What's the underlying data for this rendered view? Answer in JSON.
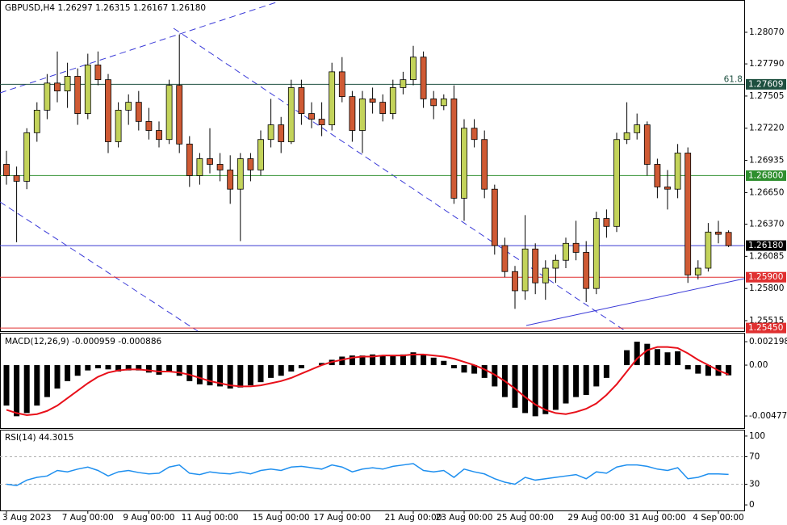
{
  "chart_data": [
    {
      "type": "candlestick",
      "title": "GBPUSD,H4  1.26297 1.26315 1.26167 1.26180",
      "categories": [
        "3 Aug 2023",
        null,
        null,
        null,
        null,
        null,
        null,
        null,
        "7 Aug 00:00",
        null,
        null,
        null,
        null,
        null,
        "9 Aug 00:00",
        null,
        null,
        null,
        null,
        null,
        "11 Aug 00:00",
        null,
        null,
        null,
        null,
        null,
        null,
        "15 Aug 00:00",
        null,
        null,
        null,
        null,
        null,
        "17 Aug 00:00",
        null,
        null,
        null,
        null,
        null,
        null,
        "21 Aug 00:00",
        null,
        null,
        null,
        null,
        "23 Aug 00:00",
        null,
        null,
        null,
        null,
        null,
        "25 Aug 00:00",
        null,
        null,
        null,
        null,
        null,
        null,
        "29 Aug 00:00",
        null,
        null,
        null,
        null,
        null,
        "31 Aug 00:00",
        null,
        null,
        null,
        null,
        null,
        "4 Sep 00:00",
        null
      ],
      "open": [
        1.269,
        1.268,
        1.2675,
        1.2718,
        1.2738,
        1.2762,
        1.2755,
        1.2768,
        1.2735,
        1.2778,
        1.2765,
        1.271,
        1.2738,
        1.2745,
        1.2728,
        1.272,
        1.2712,
        1.276,
        1.2708,
        1.268,
        1.2695,
        1.269,
        1.2685,
        1.2668,
        1.2695,
        1.2685,
        1.2712,
        1.2725,
        1.271,
        1.2758,
        1.2735,
        1.273,
        1.2725,
        1.2772,
        1.275,
        1.272,
        1.2748,
        1.2745,
        1.2735,
        1.2758,
        1.2765,
        1.2785,
        1.2748,
        1.2742,
        1.2748,
        1.266,
        1.2722,
        1.2712,
        1.2668,
        1.2618,
        1.2595,
        1.2578,
        1.2615,
        1.2585,
        1.2598,
        1.2605,
        1.262,
        1.2612,
        1.258,
        1.2642,
        1.2635,
        1.2712,
        1.2718,
        1.2725,
        1.269,
        1.267,
        1.2668,
        1.27,
        1.2592,
        1.2598,
        1.263,
        1.26297
      ],
      "high": [
        1.2702,
        1.2688,
        1.2722,
        1.2745,
        1.277,
        1.279,
        1.278,
        1.2775,
        1.2788,
        1.279,
        1.277,
        1.2745,
        1.2752,
        1.2755,
        1.274,
        1.2728,
        1.2765,
        1.2805,
        1.2715,
        1.27,
        1.2722,
        1.27,
        1.2698,
        1.27,
        1.27,
        1.272,
        1.2748,
        1.2732,
        1.2765,
        1.2765,
        1.2745,
        1.2745,
        1.278,
        1.2785,
        1.2755,
        1.2755,
        1.2758,
        1.2752,
        1.2765,
        1.2772,
        1.2795,
        1.279,
        1.2755,
        1.2752,
        1.276,
        1.273,
        1.273,
        1.272,
        1.2672,
        1.2625,
        1.26,
        1.2645,
        1.262,
        1.2605,
        1.261,
        1.2625,
        1.264,
        1.2622,
        1.2648,
        1.265,
        1.2718,
        1.2745,
        1.2735,
        1.2728,
        1.2695,
        1.2685,
        1.2708,
        1.2705,
        1.2605,
        1.2638,
        1.264,
        1.26315
      ],
      "low": [
        1.2672,
        1.2621,
        1.2668,
        1.271,
        1.273,
        1.2745,
        1.274,
        1.2725,
        1.273,
        1.276,
        1.27,
        1.2705,
        1.2725,
        1.272,
        1.2712,
        1.2705,
        1.2708,
        1.27,
        1.267,
        1.2672,
        1.2682,
        1.2675,
        1.2655,
        1.2622,
        1.2675,
        1.268,
        1.2705,
        1.27,
        1.2708,
        1.2725,
        1.2722,
        1.2715,
        1.272,
        1.2745,
        1.271,
        1.27,
        1.2735,
        1.2728,
        1.273,
        1.2752,
        1.276,
        1.274,
        1.273,
        1.2738,
        1.2655,
        1.264,
        1.2705,
        1.266,
        1.261,
        1.259,
        1.2562,
        1.257,
        1.2575,
        1.257,
        1.2585,
        1.2598,
        1.2605,
        1.2568,
        1.2575,
        1.2625,
        1.263,
        1.2708,
        1.2712,
        1.268,
        1.266,
        1.265,
        1.266,
        1.2585,
        1.2588,
        1.2595,
        1.262,
        1.26167
      ],
      "close": [
        1.268,
        1.2675,
        1.2718,
        1.2738,
        1.2762,
        1.2755,
        1.2768,
        1.2735,
        1.2778,
        1.2765,
        1.271,
        1.2738,
        1.2745,
        1.2728,
        1.272,
        1.2712,
        1.276,
        1.2708,
        1.268,
        1.2695,
        1.269,
        1.2685,
        1.2668,
        1.2695,
        1.2685,
        1.2712,
        1.2725,
        1.271,
        1.2758,
        1.2735,
        1.273,
        1.2725,
        1.2772,
        1.275,
        1.272,
        1.2748,
        1.2745,
        1.2735,
        1.2758,
        1.2765,
        1.2785,
        1.2748,
        1.2742,
        1.2748,
        1.266,
        1.2722,
        1.2712,
        1.2668,
        1.2618,
        1.2595,
        1.2578,
        1.2615,
        1.2585,
        1.2598,
        1.2605,
        1.262,
        1.2612,
        1.258,
        1.2642,
        1.2635,
        1.2712,
        1.2718,
        1.2725,
        1.269,
        1.267,
        1.2668,
        1.27,
        1.2592,
        1.2598,
        1.263,
        1.2628,
        1.2618
      ],
      "up_color": "#c3d35a",
      "down_color": "#cf5a34",
      "ylim": [
        1.25422,
        1.28356
      ],
      "yticks": [
        {
          "value": 1.2807,
          "label": "1.28070"
        },
        {
          "value": 1.2779,
          "label": "1.27790"
        },
        1.27505,
        {
          "value": 1.2722,
          "label": "1.27220"
        },
        1.26935,
        {
          "value": 1.2665,
          "label": "1.26650"
        },
        {
          "value": 1.2637,
          "label": "1.26370"
        },
        1.26085,
        {
          "value": 1.258,
          "label": "1.25800"
        },
        1.25515
      ],
      "levels": [
        {
          "value": 1.27609,
          "color": "#1d4f3f",
          "note": "61.8"
        },
        {
          "value": 1.268,
          "label": "1.26800",
          "color": "#2f8f2f"
        },
        {
          "value": 1.2618,
          "label": "1.26180",
          "color": "#3a3ad0",
          "box": "#000000"
        },
        {
          "value": 1.259,
          "label": "1.25900",
          "color": "#e03030"
        },
        {
          "value": 1.2545,
          "label": "1.25450",
          "color": "#e03030"
        }
      ]
    },
    {
      "type": "macd",
      "title": "MACD(12,26,9) -0.000959 -0.000886",
      "histogram": [
        -0.0038,
        -0.0048,
        -0.0045,
        -0.0038,
        -0.003,
        -0.0022,
        -0.0015,
        -0.001,
        -0.0005,
        -0.0003,
        -0.0004,
        -0.0006,
        -0.0005,
        -0.0005,
        -0.0007,
        -0.0009,
        -0.0006,
        -0.001,
        -0.0015,
        -0.0018,
        -0.0019,
        -0.002,
        -0.0022,
        -0.0021,
        -0.0019,
        -0.0016,
        -0.0012,
        -0.001,
        -0.0006,
        -0.0003,
        0,
        0.0002,
        0.0005,
        0.0008,
        0.0009,
        0.0009,
        0.001,
        0.0009,
        0.0009,
        0.001,
        0.0012,
        0.001,
        0.0007,
        0.0004,
        -0.0003,
        -0.0007,
        -0.0008,
        -0.0012,
        -0.002,
        -0.003,
        -0.004,
        -0.0045,
        -0.0048,
        -0.0046,
        -0.0042,
        -0.0036,
        -0.003,
        -0.0028,
        -0.002,
        -0.0012,
        0,
        0.0014,
        0.0022,
        0.002,
        0.0015,
        0.0012,
        0.0013,
        -0.0004,
        -0.0008,
        -0.001,
        -0.001,
        -0.000959
      ],
      "signal": [
        -0.0042,
        -0.0045,
        -0.0047,
        -0.0046,
        -0.0043,
        -0.0038,
        -0.0031,
        -0.0024,
        -0.0017,
        -0.0011,
        -0.0007,
        -0.0005,
        -0.0004,
        -0.0004,
        -0.0005,
        -0.0006,
        -0.0006,
        -0.0007,
        -0.0009,
        -0.0012,
        -0.0015,
        -0.0017,
        -0.0019,
        -0.002,
        -0.002,
        -0.0019,
        -0.0017,
        -0.0015,
        -0.0012,
        -0.0008,
        -0.0004,
        0,
        0.0003,
        0.0005,
        0.0007,
        0.0008,
        0.0008,
        0.0009,
        0.0009,
        0.0009,
        0.001,
        0.001,
        0.0009,
        0.0008,
        0.0006,
        0.0003,
        0,
        -0.0004,
        -0.0009,
        -0.0015,
        -0.0022,
        -0.003,
        -0.0037,
        -0.0042,
        -0.0045,
        -0.0046,
        -0.0044,
        -0.0041,
        -0.0036,
        -0.0028,
        -0.0018,
        -0.0006,
        0.0006,
        0.0014,
        0.0017,
        0.0017,
        0.0016,
        0.0011,
        0.0005,
        0,
        -0.0005,
        -0.000886
      ],
      "histogram_color": "#000000",
      "signal_color": "#e8101a",
      "ylim": [
        -0.00591,
        0.00296
      ],
      "yticks": [
        0.002198,
        {
          "value": 0,
          "label": "0.00"
        },
        -0.004775
      ]
    },
    {
      "type": "line",
      "title": "RSI(14) 44.3015",
      "values": [
        30,
        28,
        36,
        40,
        42,
        50,
        48,
        52,
        55,
        50,
        42,
        48,
        50,
        47,
        45,
        46,
        55,
        58,
        46,
        44,
        48,
        46,
        45,
        48,
        45,
        50,
        52,
        50,
        55,
        56,
        54,
        52,
        58,
        55,
        48,
        52,
        54,
        52,
        56,
        58,
        60,
        50,
        48,
        50,
        40,
        52,
        48,
        45,
        38,
        33,
        30,
        40,
        36,
        38,
        40,
        42,
        44,
        38,
        48,
        46,
        55,
        58,
        58,
        56,
        52,
        50,
        54,
        38,
        40,
        45,
        45,
        44.3015
      ],
      "color": "#1e8fef",
      "ylim": [
        -8.1,
        108.1
      ],
      "yticks": [
        100,
        70,
        30,
        0
      ],
      "levels": [
        70,
        30
      ]
    }
  ]
}
